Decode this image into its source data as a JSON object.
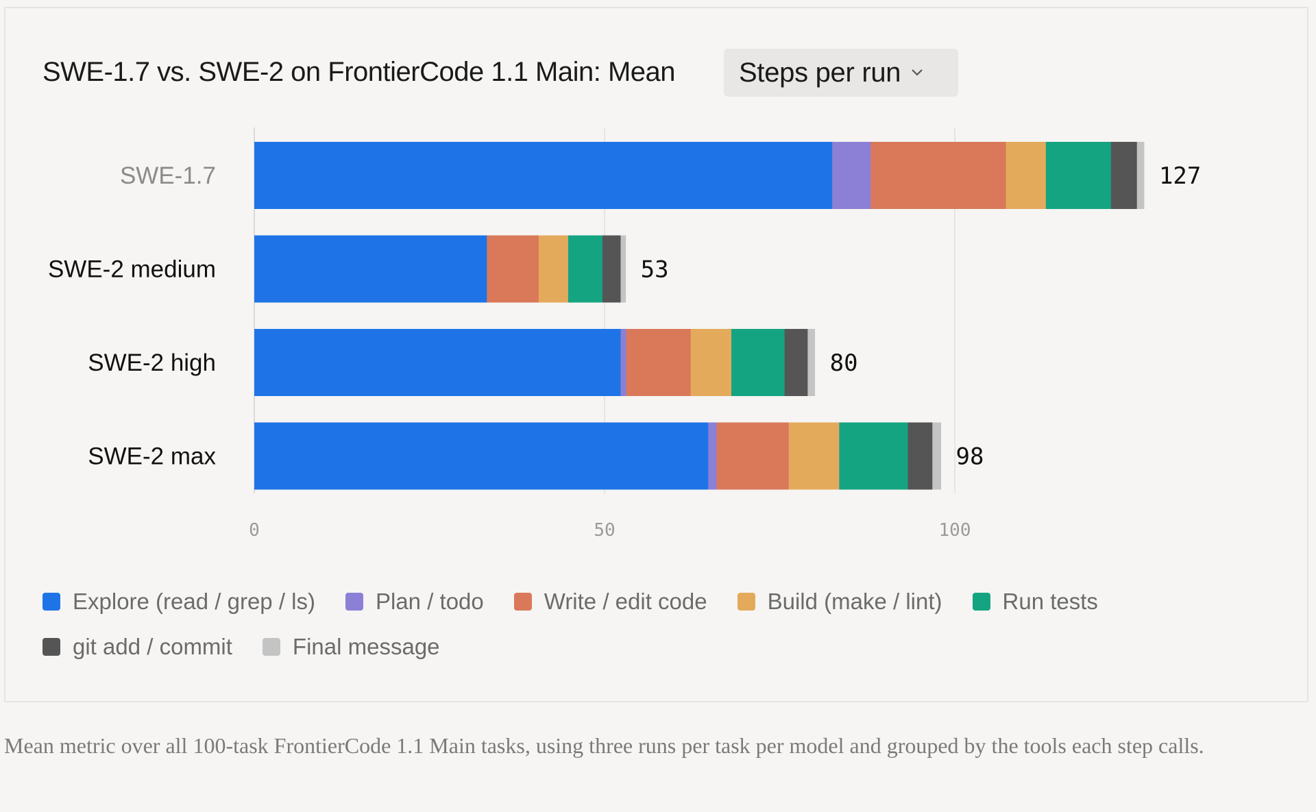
{
  "header": {
    "title": "SWE-1.7 vs. SWE-2 on FrontierCode 1.1 Main: Mean",
    "metric_selected": "Steps per run"
  },
  "caption": "Mean metric over all 100-task FrontierCode 1.1 Main tasks, using three runs per task per model and grouped by the tools each step calls.",
  "chart_data": {
    "type": "bar",
    "orientation": "horizontal",
    "stacked": true,
    "categories": [
      "SWE-1.7",
      "SWE-2 medium",
      "SWE-2 high",
      "SWE-2 max"
    ],
    "category_colors": [
      "#8a8a8a",
      "#111111",
      "#111111",
      "#111111"
    ],
    "totals": [
      127,
      53,
      80,
      98
    ],
    "xlim": [
      0,
      127
    ],
    "xticks": [
      0,
      50,
      100
    ],
    "grid": true,
    "legend_position": "bottom",
    "series": [
      {
        "name": "Explore (read / grep / ls)",
        "color": "#1e74e6",
        "values": [
          82.5,
          33.2,
          52.3,
          64.8
        ]
      },
      {
        "name": "Plan / todo",
        "color": "#8b80d6",
        "values": [
          5.5,
          0,
          0.8,
          1.2
        ]
      },
      {
        "name": "Write / edit code",
        "color": "#d9795a",
        "values": [
          19.3,
          7.4,
          9.2,
          10.3
        ]
      },
      {
        "name": "Build (make / lint)",
        "color": "#e4aa5c",
        "values": [
          5.7,
          4.2,
          5.8,
          7.2
        ]
      },
      {
        "name": "Run tests",
        "color": "#14a482",
        "values": [
          9.3,
          4.9,
          7.6,
          9.8
        ]
      },
      {
        "name": "git add / commit",
        "color": "#555555",
        "values": [
          3.7,
          2.6,
          3.3,
          3.5
        ]
      },
      {
        "name": "Final message",
        "color": "#c4c4c4",
        "values": [
          1.0,
          0.7,
          1.0,
          1.2
        ]
      }
    ]
  }
}
